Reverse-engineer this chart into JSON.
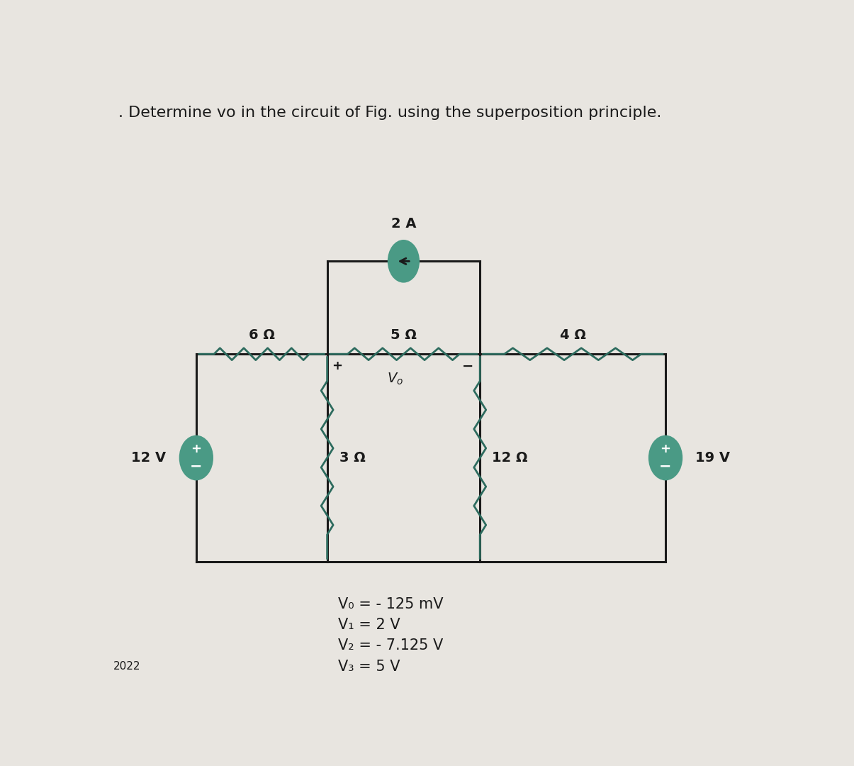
{
  "title": ". Determine vo in the circuit of Fig. using the superposition principle.",
  "title_fontsize": 16,
  "background_color": "#e8e5e0",
  "circuit_color": "#2d6b5e",
  "wire_color": "#1a1a1a",
  "text_color": "#1a1a1a",
  "source_fill": "#4a9a85",
  "result_lines": [
    "V₀ = - 125 mV",
    "V₁ = 2 V",
    "V₂ = - 7.125 V",
    "V₃ = 5 V"
  ],
  "result_fontsize": 15,
  "year_text": "2022",
  "res_lw": 2.0,
  "wire_lw": 2.2
}
